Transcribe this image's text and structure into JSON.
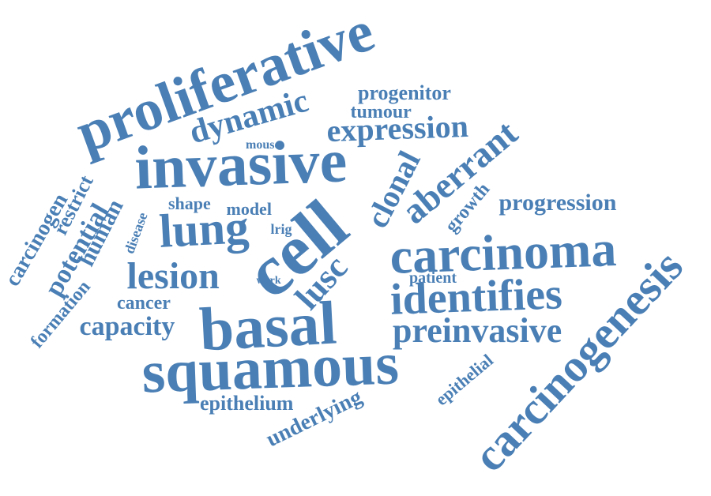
{
  "color": "#4a7fb5",
  "words": [
    {
      "id": "proliferative",
      "text": "proliferative"
    },
    {
      "id": "invasive",
      "text": "invasive"
    },
    {
      "id": "dynamic",
      "text": "dynamic"
    },
    {
      "id": "progenitor",
      "text": "progenitor"
    },
    {
      "id": "tumour",
      "text": "tumour"
    },
    {
      "id": "expression",
      "text": "expression"
    },
    {
      "id": "mouse",
      "text": "mouse"
    },
    {
      "id": "clonal",
      "text": "clonal"
    },
    {
      "id": "aberrant",
      "text": "aberrant"
    },
    {
      "id": "growth",
      "text": "growth"
    },
    {
      "id": "progression",
      "text": "progression"
    },
    {
      "id": "carcinogen",
      "text": "carcinogen"
    },
    {
      "id": "restrict",
      "text": "restrict"
    },
    {
      "id": "potential",
      "text": "potential"
    },
    {
      "id": "formation",
      "text": "formation"
    },
    {
      "id": "human",
      "text": "human"
    },
    {
      "id": "disease",
      "text": "disease"
    },
    {
      "id": "shape",
      "text": "shape"
    },
    {
      "id": "model",
      "text": "model"
    },
    {
      "id": "lung",
      "text": "lung"
    },
    {
      "id": "lrig",
      "text": "lrig"
    },
    {
      "id": "cell",
      "text": "cell"
    },
    {
      "id": "carcinoma",
      "text": "carcinoma"
    },
    {
      "id": "carcinogenesis",
      "text": "carcinogenesis"
    },
    {
      "id": "lesion",
      "text": "lesion"
    },
    {
      "id": "work",
      "text": "work"
    },
    {
      "id": "lusc",
      "text": "lusc"
    },
    {
      "id": "patient",
      "text": "patient"
    },
    {
      "id": "identifies",
      "text": "identifies"
    },
    {
      "id": "cancer",
      "text": "cancer"
    },
    {
      "id": "basal",
      "text": "basal"
    },
    {
      "id": "capacity",
      "text": "capacity"
    },
    {
      "id": "preinvasive",
      "text": "preinvasive"
    },
    {
      "id": "squamous",
      "text": "squamous"
    },
    {
      "id": "epithelial",
      "text": "epithelial"
    },
    {
      "id": "epithelium",
      "text": "epithelium"
    },
    {
      "id": "underlying",
      "text": "underlying"
    }
  ]
}
